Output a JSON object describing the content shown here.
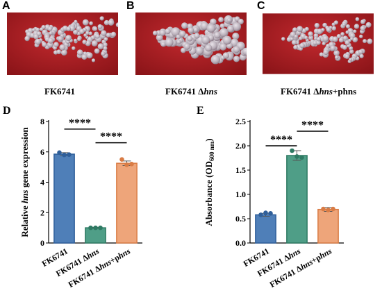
{
  "panels": {
    "A": {
      "letter": "A",
      "caption_prefix": "FK6741",
      "caption_italic": "",
      "caption_suffix": ""
    },
    "B": {
      "letter": "B",
      "caption_prefix": "FK6741 Δ",
      "caption_italic": "hns",
      "caption_suffix": ""
    },
    "C": {
      "letter": "C",
      "caption_prefix": "FK6741 Δ",
      "caption_italic": "hns",
      "caption_suffix": "+phns"
    }
  },
  "colors": {
    "blue": "#4f7fb8",
    "blue_dot": "#2f5f9a",
    "green": "#4f9e87",
    "green_dot": "#2e7a63",
    "orange": "#eea57a",
    "orange_dot": "#d97c45",
    "agar": "#a81c22"
  },
  "chart_data": [
    {
      "letter": "D",
      "type": "bar",
      "categories": [
        "FK6741",
        "FK6741 Δhns",
        "FK6741 Δhns+phns"
      ],
      "values": [
        5.85,
        1.0,
        5.25
      ],
      "errors": [
        0.1,
        0.03,
        0.15
      ],
      "points": [
        [
          5.95,
          5.8,
          5.82
        ],
        [
          1.0,
          1.0,
          1.0
        ],
        [
          5.5,
          5.15,
          5.2
        ]
      ],
      "ylabel": "Relative hns gene expression",
      "ylim": [
        0,
        8
      ],
      "yticks": [
        0,
        2,
        4,
        6,
        8
      ],
      "significance": [
        {
          "from": 0,
          "to": 1,
          "label": "****"
        },
        {
          "from": 1,
          "to": 2,
          "label": "****"
        }
      ]
    },
    {
      "letter": "E",
      "type": "bar",
      "categories": [
        "FK6741",
        "FK6741 Δhns",
        "FK6741 Δhns+phns"
      ],
      "values": [
        0.58,
        1.8,
        0.69
      ],
      "errors": [
        0.03,
        0.1,
        0.04
      ],
      "points": [
        [
          0.58,
          0.62,
          0.61
        ],
        [
          1.9,
          1.78,
          1.76
        ],
        [
          0.7,
          0.68,
          0.7
        ]
      ],
      "ylabel": "Absorbance (OD600 nm)",
      "ylim": [
        0,
        2.5
      ],
      "yticks": [
        0.0,
        0.5,
        1.0,
        1.5,
        2.0,
        2.5
      ],
      "significance": [
        {
          "from": 0,
          "to": 1,
          "label": "****"
        },
        {
          "from": 1,
          "to": 2,
          "label": "****"
        }
      ]
    }
  ]
}
